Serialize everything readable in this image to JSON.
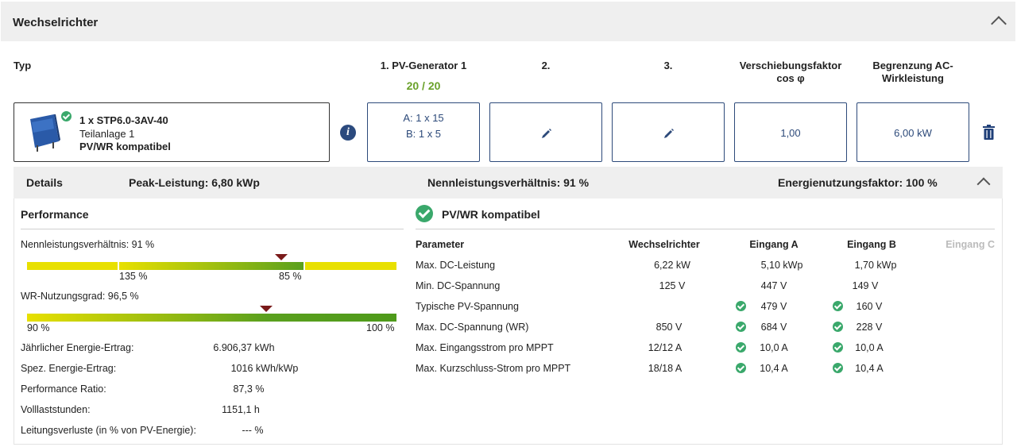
{
  "panel": {
    "title": "Wechselrichter"
  },
  "columns": {
    "typ": "Typ",
    "pv1_line1": "1. PV-Generator 1",
    "pv1_count": "20 / 20",
    "pv2": "2.",
    "pv3": "3.",
    "cos_line1": "Verschiebungsfaktor",
    "cos_line2": "cos φ",
    "ac_line1": "Begrenzung AC-",
    "ac_line2": "Wirkleistung"
  },
  "inverter": {
    "name": "1 x STP6.0-3AV-40",
    "subsystem": "Teilanlage 1",
    "compat": "PV/WR kompatibel",
    "pv1_a": "A: 1 x 15",
    "pv1_b": "B: 1 x 5",
    "cos_phi": "1,00",
    "ac_limit": "6,00 kW"
  },
  "details": {
    "label": "Details",
    "peak": "Peak-Leistung: 6,80 kWp",
    "ratio": "Nennleistungsverhältnis: 91 %",
    "efactor": "Energienutzungsfaktor: 100 %"
  },
  "performance": {
    "title": "Performance",
    "nlv_label": "Nennleistungsverhältnis: 91 %",
    "nlv_tick_left": "135 %",
    "nlv_tick_right": "85 %",
    "wr_label": "WR-Nutzungsgrad: 96,5 %",
    "wr_tick_left": "90 %",
    "wr_tick_right": "100 %",
    "rows": [
      {
        "label": "Jährlicher Energie-Ertrag:",
        "value": "6.906,37 kWh"
      },
      {
        "label": "Spez. Energie-Ertrag:",
        "value": "1016 kWh/kWp"
      },
      {
        "label": "Performance Ratio:",
        "value": "87,3 %"
      },
      {
        "label": "Volllaststunden:",
        "value": "1151,1 h"
      },
      {
        "label": "Leitungsverluste (in % von PV-Energie):",
        "value": "--- %"
      }
    ]
  },
  "compat": {
    "title": "PV/WR kompatibel",
    "headers": [
      "Parameter",
      "Wechselrichter",
      "Eingang A",
      "Eingang B",
      "Eingang C"
    ],
    "rows": [
      {
        "param": "Max. DC-Leistung",
        "wr": "6,22 kW",
        "a": "5,10 kWp",
        "b": "1,70 kWp"
      },
      {
        "param": "Min. DC-Spannung",
        "wr": "125 V",
        "a": "447 V",
        "b": "149 V"
      },
      {
        "param": "Typische PV-Spannung",
        "wr": "",
        "a": "479 V",
        "b": "160 V"
      },
      {
        "param": "Max. DC-Spannung (WR)",
        "wr": "850 V",
        "a": "684 V",
        "b": "228 V"
      },
      {
        "param": "Max. Eingangsstrom pro MPPT",
        "wr": "12/12 A",
        "a": "10,0 A",
        "b": "10,0 A"
      },
      {
        "param": "Max. Kurzschluss-Strom pro MPPT",
        "wr": "18/18 A",
        "a": "10,4 A",
        "b": "10,4 A"
      }
    ]
  },
  "colors": {
    "accent": "#2d4a7a",
    "ok": "#3aa86b",
    "count": "#6aa12a",
    "marker": "#7a1a1a"
  }
}
